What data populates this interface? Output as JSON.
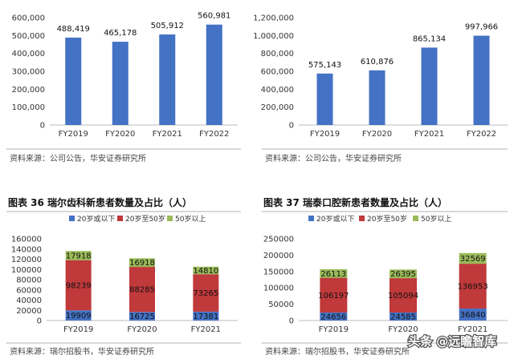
{
  "sources": {
    "top_left": "资料来源：公司公告，华安证券研究所",
    "top_right": "资料来源：公司公告，华安证券研究所",
    "bottom_left": "资料来源：瑞尔招股书，华安证券研究所",
    "bottom_right": "资料来源：瑞尔招股书，华安证券研究所"
  },
  "watermark": "头条 @远瞻智库",
  "colors": {
    "blue": "#4472C4",
    "red": "#C0393B",
    "green": "#9BBB59"
  },
  "chart_data": [
    {
      "type": "bar",
      "title": "",
      "categories": [
        "FY2019",
        "FY2020",
        "FY2021",
        "FY2022"
      ],
      "values": [
        488419,
        465178,
        505912,
        560981
      ],
      "value_labels": [
        "488,419",
        "465,178",
        "505,912",
        "560,981"
      ],
      "ylim": [
        0,
        600000
      ],
      "yticks": [
        "0",
        "100,000",
        "200,000",
        "300,000",
        "400,000",
        "500,000",
        "600,000"
      ]
    },
    {
      "type": "bar",
      "title": "",
      "categories": [
        "FY2019",
        "FY2020",
        "FY2021",
        "FY2022"
      ],
      "values": [
        575143,
        610876,
        865134,
        997966
      ],
      "value_labels": [
        "575,143",
        "610,876",
        "865,134",
        "997,966"
      ],
      "ylim": [
        0,
        1200000
      ],
      "yticks": [
        "0",
        "200,000",
        "400,000",
        "600,000",
        "800,000",
        "1,000,000",
        "1,200,000"
      ]
    },
    {
      "type": "bar",
      "stacked": true,
      "title": "图表 36 瑞尔齿科新患者数量及占比（人）",
      "categories": [
        "FY2019",
        "FY2020",
        "FY2021"
      ],
      "series": [
        {
          "name": "20岁或以下",
          "values": [
            19909,
            16725,
            17381
          ]
        },
        {
          "name": "20岁至50岁",
          "values": [
            98239,
            88285,
            73265
          ]
        },
        {
          "name": "50岁以上",
          "values": [
            17918,
            16918,
            14810
          ]
        }
      ],
      "ylim": [
        0,
        160000
      ],
      "yticks": [
        "0",
        "20000",
        "40000",
        "60000",
        "80000",
        "100000",
        "120000",
        "140000",
        "160000"
      ],
      "legend": "top"
    },
    {
      "type": "bar",
      "stacked": true,
      "title": "图表 37 瑞泰口腔新患者数量及占比（人）",
      "categories": [
        "FY2019",
        "FY2020",
        "FY2021"
      ],
      "series": [
        {
          "name": "20岁或以下",
          "values": [
            24656,
            24585,
            36840
          ]
        },
        {
          "name": "20岁至50岁",
          "values": [
            106197,
            105094,
            136953
          ]
        },
        {
          "name": "50岁以上",
          "values": [
            26113,
            26395,
            32569
          ]
        }
      ],
      "ylim": [
        0,
        250000
      ],
      "yticks": [
        "0",
        "50000",
        "100000",
        "150000",
        "200000",
        "250000"
      ],
      "legend": "top"
    }
  ]
}
